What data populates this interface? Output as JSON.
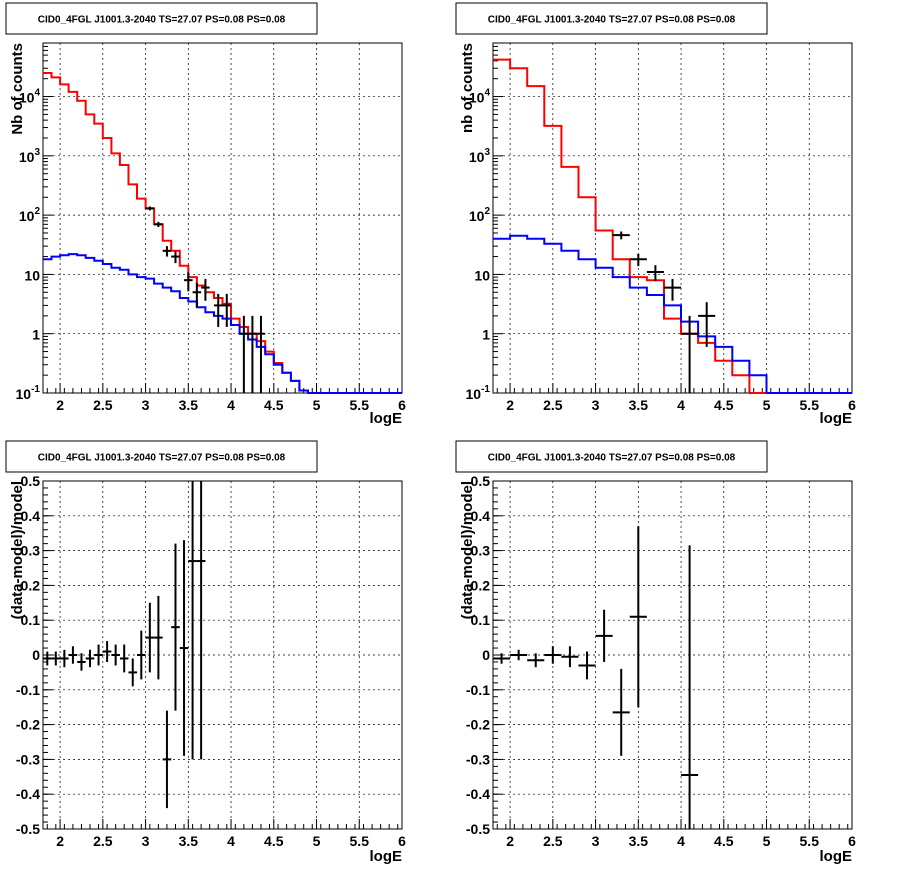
{
  "chart_data": [
    {
      "type": "line",
      "title": "CID0_4FGL J1001.3-2040 TS=27.07 PS=0.08 PS=0.08",
      "xlabel": "logE",
      "ylabel": "Nb of counts",
      "xlim": [
        1.8,
        6.0
      ],
      "ylim": [
        0.1,
        80000
      ],
      "yscale": "log",
      "xticks": [
        "2",
        "2.5",
        "3",
        "3.5",
        "4",
        "4.5",
        "5",
        "5.5",
        "6"
      ],
      "yticks": [
        "10^-1",
        "1",
        "10",
        "10^2",
        "10^3",
        "10^4"
      ],
      "grid": true,
      "bin_edges": [
        1.8,
        1.9,
        2.0,
        2.1,
        2.2,
        2.3,
        2.4,
        2.5,
        2.6,
        2.7,
        2.8,
        2.9,
        3.0,
        3.1,
        3.2,
        3.3,
        3.4,
        3.5,
        3.6,
        3.7,
        3.8,
        3.9,
        4.0,
        4.1,
        4.2,
        4.3,
        4.4,
        4.5,
        4.6,
        4.7,
        4.8,
        4.9,
        5.0,
        5.1,
        5.2,
        5.3,
        5.4,
        5.5,
        5.6,
        5.7,
        5.8,
        5.9,
        6.0
      ],
      "series": [
        {
          "values": [
            25000,
            21000,
            16000,
            12000,
            8500,
            5000,
            3500,
            2000,
            1100,
            700,
            330,
            190,
            130,
            70,
            37,
            25,
            14,
            9,
            6.5,
            5,
            4,
            3.2,
            1.8,
            1.3,
            1.0,
            0.75,
            0.5,
            0.32,
            0.22,
            0.16,
            0.11,
            0.1,
            0.1,
            0.1,
            0.1,
            0.1,
            0.1,
            0.1,
            0.1,
            0.1,
            0.1,
            0.1
          ],
          "color": "#ff0000",
          "kind": "step"
        },
        {
          "values": [
            18,
            20,
            21,
            22,
            21,
            19,
            17,
            15,
            13,
            12,
            10,
            9,
            8.5,
            7,
            6,
            5.2,
            4,
            3.5,
            2.8,
            2.3,
            2.0,
            1.8,
            1.4,
            1.0,
            0.8,
            0.6,
            0.45,
            0.3,
            0.22,
            0.16,
            0.11,
            0.1,
            0.1,
            0.1,
            0.1,
            0.1,
            0.1,
            0.1,
            0.1,
            0.1,
            0.1,
            0.1
          ],
          "color": "#0000ff",
          "kind": "step"
        }
      ],
      "points": [
        {
          "x": 3.05,
          "y": 130,
          "xerr": 0.05,
          "yerr": [
            10,
            10
          ]
        },
        {
          "x": 3.15,
          "y": 70,
          "xerr": 0.05,
          "yerr": [
            7,
            7
          ]
        },
        {
          "x": 3.25,
          "y": 25,
          "xerr": 0.05,
          "yerr": [
            5,
            5
          ]
        },
        {
          "x": 3.35,
          "y": 20,
          "xerr": 0.05,
          "yerr": [
            4.5,
            4.5
          ]
        },
        {
          "x": 3.5,
          "y": 8,
          "xerr": 0.05,
          "yerr": [
            2.8,
            2.8
          ]
        },
        {
          "x": 3.6,
          "y": 5,
          "xerr": 0.05,
          "yerr": [
            2.2,
            2.2
          ]
        },
        {
          "x": 3.7,
          "y": 6,
          "xerr": 0.05,
          "yerr": [
            2.4,
            2.4
          ]
        },
        {
          "x": 3.85,
          "y": 3,
          "xerr": 0.05,
          "yerr": [
            1.7,
            1.7
          ]
        },
        {
          "x": 3.95,
          "y": 3,
          "xerr": 0.05,
          "yerr": [
            1.7,
            1.7
          ]
        },
        {
          "x": 4.15,
          "y": 1,
          "xerr": 0.05,
          "yerr": [
            0.9,
            1
          ]
        },
        {
          "x": 4.25,
          "y": 1,
          "xerr": 0.05,
          "yerr": [
            0.9,
            1
          ]
        },
        {
          "x": 4.35,
          "y": 1,
          "xerr": 0.05,
          "yerr": [
            0.9,
            1
          ]
        }
      ]
    },
    {
      "type": "line",
      "title": "CID0_4FGL J1001.3-2040 TS=27.07 PS=0.08 PS=0.08",
      "xlabel": "logE",
      "ylabel": "nb of counts",
      "xlim": [
        1.8,
        6.0
      ],
      "ylim": [
        0.1,
        80000
      ],
      "yscale": "log",
      "xticks": [
        "2",
        "2.5",
        "3",
        "3.5",
        "4",
        "4.5",
        "5",
        "5.5",
        "6"
      ],
      "yticks": [
        "10^-1",
        "1",
        "10",
        "10^2",
        "10^3",
        "10^4"
      ],
      "grid": true,
      "bin_edges": [
        1.8,
        2.0,
        2.2,
        2.4,
        2.6,
        2.8,
        3.0,
        3.2,
        3.4,
        3.6,
        3.8,
        4.0,
        4.2,
        4.4,
        4.6,
        4.8,
        5.0,
        5.2,
        5.4,
        5.6,
        5.8,
        6.0
      ],
      "series": [
        {
          "values": [
            42000,
            30000,
            15000,
            3200,
            650,
            200,
            55,
            18,
            9,
            8,
            1.8,
            1.0,
            0.7,
            0.35,
            0.2,
            0.1,
            0.1,
            0.1,
            0.1,
            0.1,
            0.1
          ],
          "color": "#ff0000",
          "kind": "step"
        },
        {
          "values": [
            40,
            45,
            40,
            33,
            25,
            18,
            13,
            9,
            6,
            4.5,
            3,
            1.6,
            0.9,
            0.6,
            0.35,
            0.2,
            0.1,
            0.1,
            0.1,
            0.1,
            0.1
          ],
          "color": "#0000ff",
          "kind": "step"
        }
      ],
      "points": [
        {
          "x": 3.3,
          "y": 46,
          "xerr": 0.1,
          "yerr": [
            7,
            7
          ]
        },
        {
          "x": 3.5,
          "y": 18,
          "xerr": 0.1,
          "yerr": [
            4.2,
            4.2
          ]
        },
        {
          "x": 3.7,
          "y": 11,
          "xerr": 0.1,
          "yerr": [
            3.3,
            3.3
          ]
        },
        {
          "x": 3.9,
          "y": 6,
          "xerr": 0.1,
          "yerr": [
            2.4,
            2.4
          ]
        },
        {
          "x": 4.1,
          "y": 1,
          "xerr": 0.1,
          "yerr": [
            0.9,
            1
          ]
        },
        {
          "x": 4.3,
          "y": 2,
          "xerr": 0.1,
          "yerr": [
            1.4,
            1.4
          ]
        }
      ]
    },
    {
      "type": "scatter",
      "title": "CID0_4FGL J1001.3-2040 TS=27.07 PS=0.08 PS=0.08",
      "xlabel": "logE",
      "ylabel": "(data-model)/model",
      "xlim": [
        1.8,
        6.0
      ],
      "ylim": [
        -0.5,
        0.5
      ],
      "xticks": [
        "2",
        "2.5",
        "3",
        "3.5",
        "4",
        "4.5",
        "5",
        "5.5",
        "6"
      ],
      "yticks": [
        "-0.5",
        "-0.4",
        "-0.3",
        "-0.2",
        "-0.1",
        "0",
        "0.1",
        "0.2",
        "0.3",
        "0.4",
        "0.5"
      ],
      "grid": true,
      "points": [
        {
          "x": 1.85,
          "y": -0.01,
          "xerr": 0.05,
          "yerr": 0.02
        },
        {
          "x": 1.95,
          "y": -0.01,
          "xerr": 0.05,
          "yerr": 0.02
        },
        {
          "x": 2.05,
          "y": -0.01,
          "xerr": 0.05,
          "yerr": 0.025
        },
        {
          "x": 2.15,
          "y": 0.0,
          "xerr": 0.05,
          "yerr": 0.025
        },
        {
          "x": 2.25,
          "y": -0.02,
          "xerr": 0.05,
          "yerr": 0.025
        },
        {
          "x": 2.35,
          "y": -0.01,
          "xerr": 0.05,
          "yerr": 0.025
        },
        {
          "x": 2.45,
          "y": 0.0,
          "xerr": 0.05,
          "yerr": 0.03
        },
        {
          "x": 2.55,
          "y": 0.01,
          "xerr": 0.05,
          "yerr": 0.03
        },
        {
          "x": 2.65,
          "y": 0.0,
          "xerr": 0.05,
          "yerr": 0.03
        },
        {
          "x": 2.75,
          "y": -0.01,
          "xerr": 0.05,
          "yerr": 0.04
        },
        {
          "x": 2.85,
          "y": -0.05,
          "xerr": 0.05,
          "yerr": 0.04
        },
        {
          "x": 2.95,
          "y": 0.0,
          "xerr": 0.05,
          "yerr": 0.07
        },
        {
          "x": 3.05,
          "y": 0.05,
          "xerr": 0.05,
          "yerr": 0.1
        },
        {
          "x": 3.15,
          "y": 0.05,
          "xerr": 0.05,
          "yerr": 0.12
        },
        {
          "x": 3.25,
          "y": -0.3,
          "xerr": 0.05,
          "yerr": 0.14
        },
        {
          "x": 3.35,
          "y": 0.08,
          "xerr": 0.05,
          "yerr": 0.24
        },
        {
          "x": 3.45,
          "y": 0.02,
          "xerr": 0.05,
          "yerr": 0.31
        },
        {
          "x": 3.55,
          "y": 0.27,
          "xerr": 0.05,
          "yerr": 0.57
        },
        {
          "x": 3.65,
          "y": 0.27,
          "xerr": 0.05,
          "yerr": 0.57
        }
      ]
    },
    {
      "type": "scatter",
      "title": "CID0_4FGL J1001.3-2040 TS=27.07 PS=0.08 PS=0.08",
      "xlabel": "logE",
      "ylabel": "(data-model)/model",
      "xlim": [
        1.8,
        6.0
      ],
      "ylim": [
        -0.5,
        0.5
      ],
      "xticks": [
        "2",
        "2.5",
        "3",
        "3.5",
        "4",
        "4.5",
        "5",
        "5.5",
        "6"
      ],
      "yticks": [
        "-0.5",
        "-0.4",
        "-0.3",
        "-0.2",
        "-0.1",
        "0",
        "0.1",
        "0.2",
        "0.3",
        "0.4",
        "0.5"
      ],
      "grid": true,
      "points": [
        {
          "x": 1.9,
          "y": -0.01,
          "xerr": 0.1,
          "yerr": 0.015
        },
        {
          "x": 2.1,
          "y": 0.0,
          "xerr": 0.1,
          "yerr": 0.015
        },
        {
          "x": 2.3,
          "y": -0.015,
          "xerr": 0.1,
          "yerr": 0.02
        },
        {
          "x": 2.5,
          "y": 0.0,
          "xerr": 0.1,
          "yerr": 0.025
        },
        {
          "x": 2.7,
          "y": -0.005,
          "xerr": 0.1,
          "yerr": 0.03
        },
        {
          "x": 2.9,
          "y": -0.03,
          "xerr": 0.1,
          "yerr": 0.04
        },
        {
          "x": 3.1,
          "y": 0.055,
          "xerr": 0.1,
          "yerr": 0.075
        },
        {
          "x": 3.3,
          "y": -0.165,
          "xerr": 0.1,
          "yerr": 0.125
        },
        {
          "x": 3.5,
          "y": 0.11,
          "xerr": 0.1,
          "yerr": 0.26
        },
        {
          "x": 4.1,
          "y": -0.345,
          "xerr": 0.1,
          "yerr": 0.66
        }
      ]
    }
  ]
}
